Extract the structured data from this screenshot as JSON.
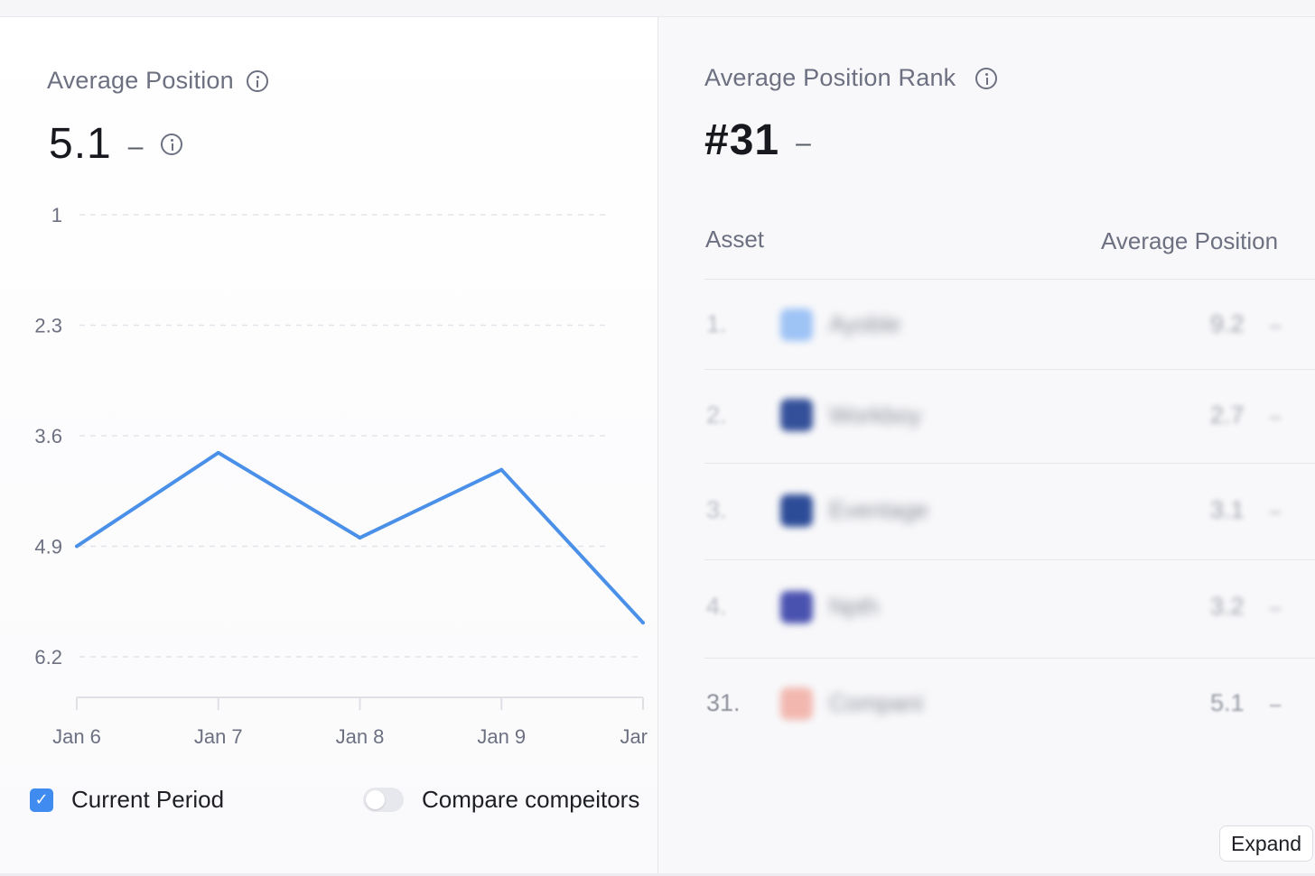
{
  "left_panel": {
    "title": "Average Position",
    "value": "5.1",
    "change": "–",
    "legend_current": "Current Period",
    "check_mark": "✓",
    "compare_label": "Compare compeitors",
    "compare_enabled": false
  },
  "chart_data": {
    "type": "line",
    "title": "",
    "xlabel": "",
    "ylabel": "",
    "y_inverted": true,
    "ylim": [
      1,
      6.2
    ],
    "y_ticks": [
      "1",
      "2.3",
      "3.6",
      "4.9",
      "6.2"
    ],
    "y_tick_values": [
      1,
      2.3,
      3.6,
      4.9,
      6.2
    ],
    "categories": [
      "Jan 6",
      "Jan 7",
      "Jan 8",
      "Jan 9",
      "Jar"
    ],
    "series": [
      {
        "values": [
          4.9,
          3.8,
          4.8,
          4.0,
          5.8
        ],
        "color": "#4a90e8"
      }
    ],
    "grid": true,
    "legend": "bottom-left"
  },
  "right_panel": {
    "title": "Average Position Rank",
    "value": "#31",
    "change": "–",
    "columns": [
      "Asset",
      "Average Position"
    ],
    "rows": [
      {
        "rank": "1.",
        "name": "Ayoble",
        "position": "9.2",
        "change": "–",
        "icon_color": "#9ec3f5"
      },
      {
        "rank": "2.",
        "name": "Workboy",
        "position": "2.7",
        "change": "–",
        "icon_color": "#34509a"
      },
      {
        "rank": "3.",
        "name": "Eventage",
        "position": "3.1",
        "change": "–",
        "icon_color": "#2d4c98"
      },
      {
        "rank": "4.",
        "name": "Npth",
        "position": "3.2",
        "change": "–",
        "icon_color": "#4a52b0"
      },
      {
        "rank": "31.",
        "name": "Compani",
        "position": "5.1",
        "change": "–",
        "icon_color": "#f2b8b0"
      }
    ],
    "expand_label": "Expand"
  }
}
